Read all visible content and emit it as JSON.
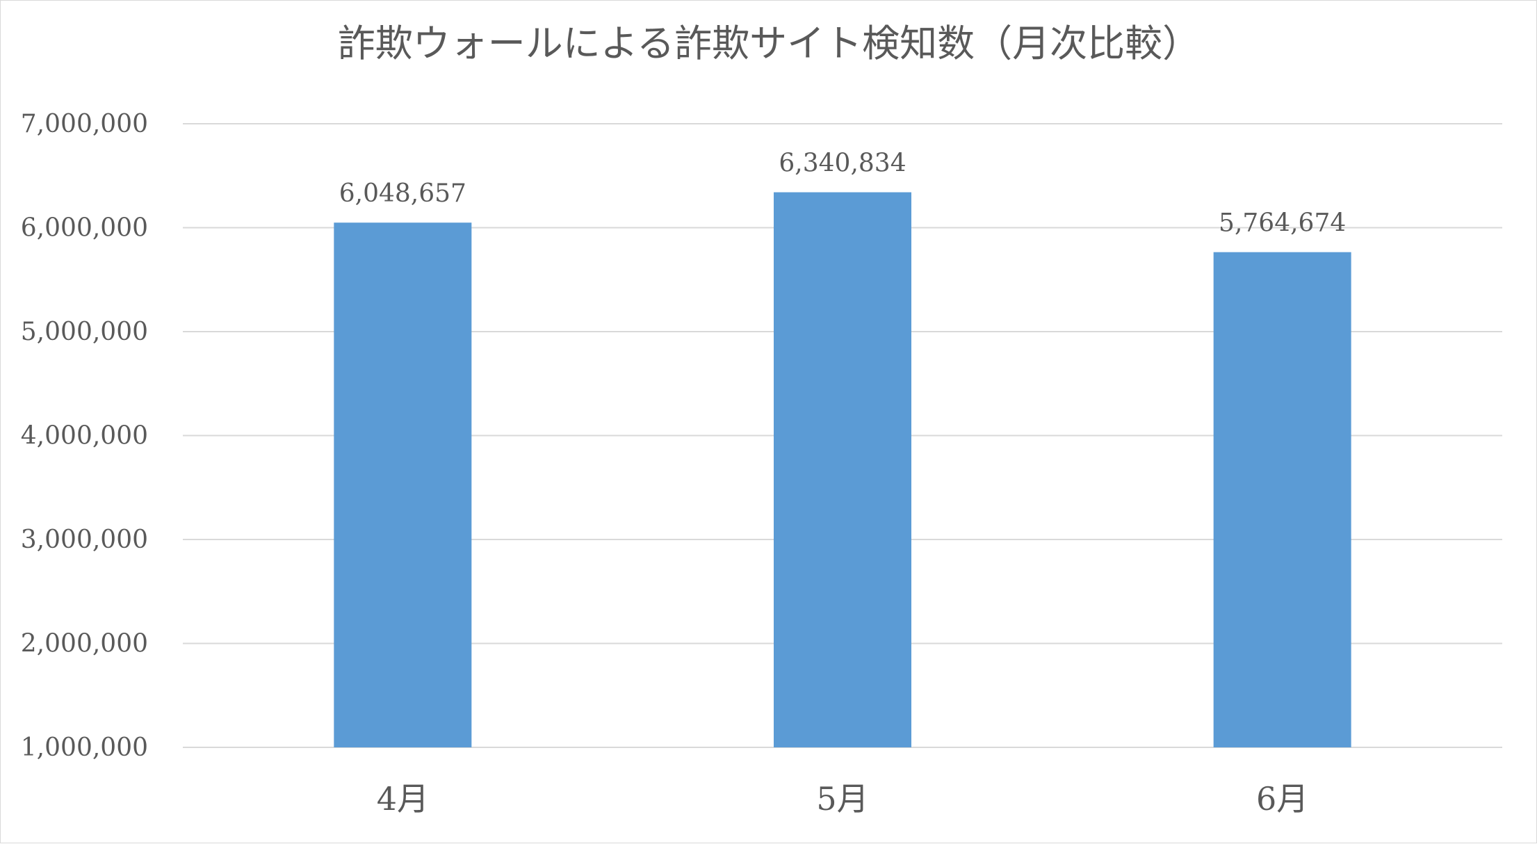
{
  "chart_data": {
    "type": "bar",
    "title": "詐欺ウォールによる詐欺サイト検知数（月次比較）",
    "categories": [
      "4月",
      "5月",
      "6月"
    ],
    "values": [
      6048657,
      6340834,
      5764674
    ],
    "data_labels": [
      "6,048,657",
      "6,340,834",
      "5,764,674"
    ],
    "ylim": [
      1000000,
      7000000
    ],
    "yticks": [
      1000000,
      2000000,
      3000000,
      4000000,
      5000000,
      6000000,
      7000000
    ],
    "ytick_labels": [
      "1,000,000",
      "2,000,000",
      "3,000,000",
      "4,000,000",
      "5,000,000",
      "6,000,000",
      "7,000,000"
    ],
    "grid": true,
    "legend": "none",
    "xlabel": "",
    "ylabel": ""
  },
  "colors": {
    "bar": "#5b9bd5",
    "grid": "#d9d9d9",
    "text": "#595959",
    "title": "#595959"
  }
}
